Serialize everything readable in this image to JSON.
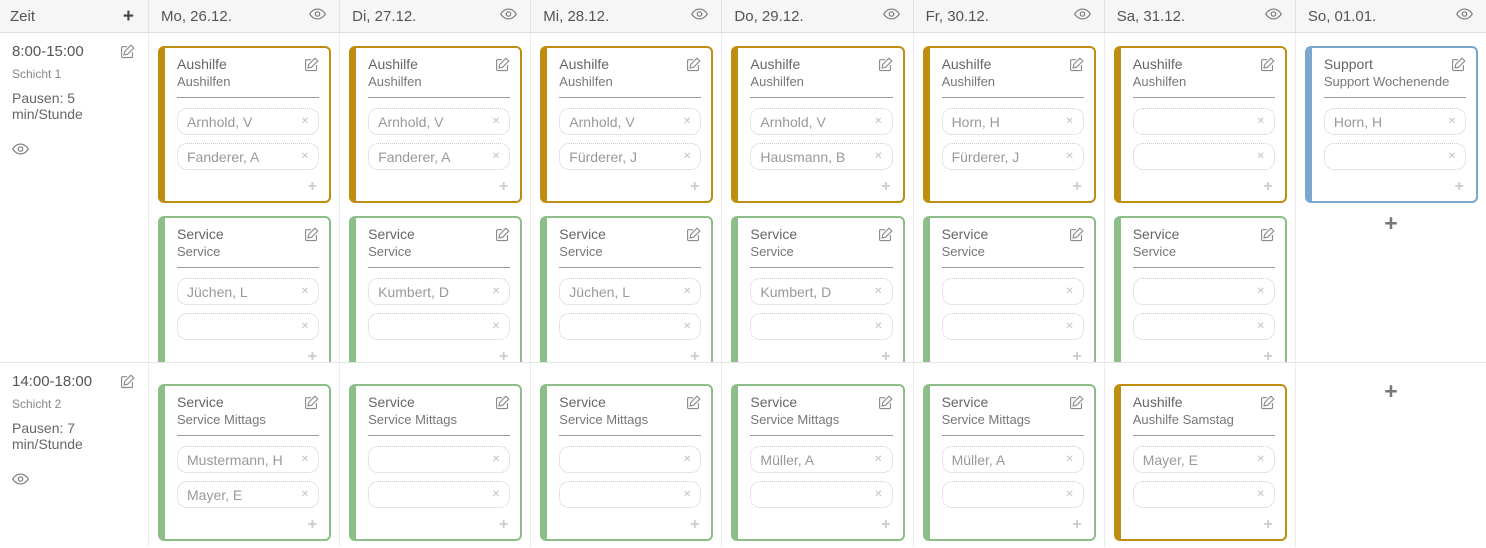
{
  "header": {
    "zeit_label": "Zeit",
    "add_button": "+",
    "days": [
      {
        "label": "Mo, 26.12."
      },
      {
        "label": "Di, 27.12."
      },
      {
        "label": "Mi, 28.12."
      },
      {
        "label": "Do, 29.12."
      },
      {
        "label": "Fr, 30.12."
      },
      {
        "label": "Sa, 31.12."
      },
      {
        "label": "So, 01.01."
      }
    ]
  },
  "labels": {
    "add_card": "+",
    "add_member": "+",
    "remove_member": "✕"
  },
  "icons": {
    "eye": "eye-icon",
    "edit": "edit-icon",
    "add": "plus-icon",
    "remove": "x-icon"
  },
  "colors": {
    "aushilfe": "#bf8e11",
    "service": "#8cbe88",
    "support": "#7ba7cc"
  },
  "shifts": [
    {
      "time": "8:00-15:00",
      "name": "Schicht 1",
      "pauses": "Pausen: 5 min/Stunde",
      "cells": [
        {
          "cards": [
            {
              "color": "aushilfe",
              "title": "Aushilfe",
              "subtitle": "Aushilfen",
              "members": [
                {
                  "name": "Arnhold, V"
                },
                {
                  "name": "Fanderer, A"
                }
              ]
            },
            {
              "color": "service",
              "title": "Service",
              "subtitle": "Service",
              "members": [
                {
                  "name": "Jüchen, L"
                },
                {
                  "name": ""
                }
              ]
            }
          ]
        },
        {
          "cards": [
            {
              "color": "aushilfe",
              "title": "Aushilfe",
              "subtitle": "Aushilfen",
              "members": [
                {
                  "name": "Arnhold, V"
                },
                {
                  "name": "Fanderer, A"
                }
              ]
            },
            {
              "color": "service",
              "title": "Service",
              "subtitle": "Service",
              "members": [
                {
                  "name": "Kumbert, D"
                },
                {
                  "name": ""
                }
              ]
            }
          ]
        },
        {
          "cards": [
            {
              "color": "aushilfe",
              "title": "Aushilfe",
              "subtitle": "Aushilfen",
              "members": [
                {
                  "name": "Arnhold, V"
                },
                {
                  "name": "Fürderer, J"
                }
              ]
            },
            {
              "color": "service",
              "title": "Service",
              "subtitle": "Service",
              "members": [
                {
                  "name": "Jüchen, L"
                },
                {
                  "name": ""
                }
              ]
            }
          ]
        },
        {
          "cards": [
            {
              "color": "aushilfe",
              "title": "Aushilfe",
              "subtitle": "Aushilfen",
              "members": [
                {
                  "name": "Arnhold, V"
                },
                {
                  "name": "Hausmann, B"
                }
              ]
            },
            {
              "color": "service",
              "title": "Service",
              "subtitle": "Service",
              "members": [
                {
                  "name": "Kumbert, D"
                },
                {
                  "name": ""
                }
              ]
            }
          ]
        },
        {
          "cards": [
            {
              "color": "aushilfe",
              "title": "Aushilfe",
              "subtitle": "Aushilfen",
              "members": [
                {
                  "name": "Horn, H"
                },
                {
                  "name": "Fürderer, J"
                }
              ]
            },
            {
              "color": "service",
              "title": "Service",
              "subtitle": "Service",
              "members": [
                {
                  "name": ""
                },
                {
                  "name": ""
                }
              ]
            }
          ]
        },
        {
          "cards": [
            {
              "color": "aushilfe",
              "title": "Aushilfe",
              "subtitle": "Aushilfen",
              "members": [
                {
                  "name": ""
                },
                {
                  "name": ""
                }
              ]
            },
            {
              "color": "service",
              "title": "Service",
              "subtitle": "Service",
              "members": [
                {
                  "name": ""
                },
                {
                  "name": ""
                }
              ]
            }
          ]
        },
        {
          "cards": [
            {
              "color": "support",
              "title": "Support",
              "subtitle": "Support Wochenende",
              "members": [
                {
                  "name": "Horn, H"
                },
                {
                  "name": ""
                }
              ]
            }
          ]
        }
      ]
    },
    {
      "time": "14:00-18:00",
      "name": "Schicht 2",
      "pauses": "Pausen: 7 min/Stunde",
      "cells": [
        {
          "cards": [
            {
              "color": "service",
              "title": "Service",
              "subtitle": "Service Mittags",
              "members": [
                {
                  "name": "Mustermann, H"
                },
                {
                  "name": "Mayer, E"
                }
              ]
            }
          ]
        },
        {
          "cards": [
            {
              "color": "service",
              "title": "Service",
              "subtitle": "Service Mittags",
              "members": [
                {
                  "name": ""
                },
                {
                  "name": ""
                }
              ]
            }
          ]
        },
        {
          "cards": [
            {
              "color": "service",
              "title": "Service",
              "subtitle": "Service Mittags",
              "members": [
                {
                  "name": ""
                },
                {
                  "name": ""
                }
              ]
            }
          ]
        },
        {
          "cards": [
            {
              "color": "service",
              "title": "Service",
              "subtitle": "Service Mittags",
              "members": [
                {
                  "name": "Müller, A"
                },
                {
                  "name": ""
                }
              ]
            }
          ]
        },
        {
          "cards": [
            {
              "color": "service",
              "title": "Service",
              "subtitle": "Service Mittags",
              "members": [
                {
                  "name": "Müller, A"
                },
                {
                  "name": ""
                }
              ]
            }
          ]
        },
        {
          "cards": [
            {
              "color": "aushilfe",
              "title": "Aushilfe",
              "subtitle": "Aushilfe Samstag",
              "members": [
                {
                  "name": "Mayer, E"
                },
                {
                  "name": ""
                }
              ]
            }
          ]
        },
        {
          "cards": []
        }
      ]
    }
  ]
}
